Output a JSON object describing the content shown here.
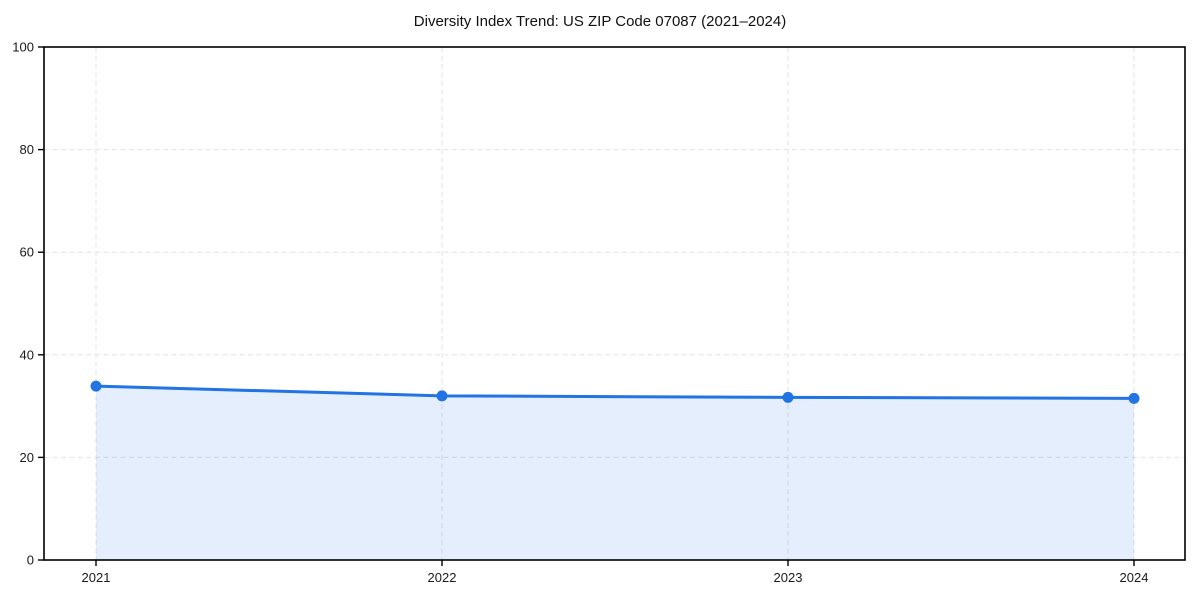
{
  "chart_data": {
    "type": "area",
    "title": "Diversity Index Trend: US ZIP Code 07087 (2021–2024)",
    "categories": [
      "2021",
      "2022",
      "2023",
      "2024"
    ],
    "series": [
      {
        "name": "Diversity Index",
        "values": [
          33.9,
          32.0,
          31.7,
          31.5
        ]
      }
    ],
    "xlabel": "",
    "ylabel": "",
    "ylim": [
      0,
      100
    ],
    "yticks": [
      0,
      20,
      40,
      60,
      80,
      100
    ],
    "grid": {
      "visible": true,
      "style": "dashed",
      "axis": "both"
    },
    "legend": {
      "visible": false
    },
    "marker": "circle",
    "colors": {
      "line": "#2273e3",
      "marker": "#2273e3",
      "fill": "rgba(34,115,227,0.12)",
      "grid": "#e2e2e2",
      "axis": "#000000",
      "tick_label": "#1a1a1a",
      "title": "#111111",
      "background": "#ffffff"
    }
  }
}
